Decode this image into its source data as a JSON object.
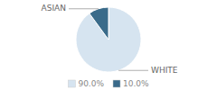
{
  "chart_data": {
    "type": "pie",
    "categories": [
      "WHITE",
      "ASIAN"
    ],
    "values": [
      90.0,
      10.0
    ],
    "value_labels": [
      "90.0%",
      "10.0%"
    ],
    "colors": [
      "#d6e4f0",
      "#3a6b8a"
    ],
    "legend": "bottom"
  }
}
